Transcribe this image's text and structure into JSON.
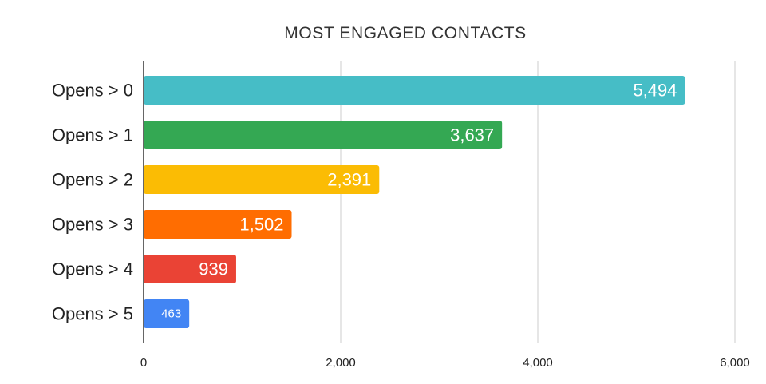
{
  "chart_data": {
    "type": "bar",
    "orientation": "horizontal",
    "title": "MOST ENGAGED CONTACTS",
    "xlabel": "",
    "ylabel": "",
    "categories": [
      "Opens > 0",
      "Opens > 1",
      "Opens > 2",
      "Opens > 3",
      "Opens > 4",
      "Opens > 5"
    ],
    "values": [
      5494,
      3637,
      2391,
      1502,
      939,
      463
    ],
    "value_labels": [
      "5,494",
      "3,637",
      "2,391",
      "1,502",
      "939",
      "463"
    ],
    "colors": [
      "#46BDC6",
      "#34A853",
      "#FBBC04",
      "#FF6D01",
      "#EA4335",
      "#4285F4"
    ],
    "xlim": [
      0,
      6000
    ],
    "xticks": [
      0,
      2000,
      4000,
      6000
    ],
    "xtick_labels": [
      "0",
      "2,000",
      "4,000",
      "6,000"
    ],
    "grid": "vertical",
    "legend": "none"
  }
}
